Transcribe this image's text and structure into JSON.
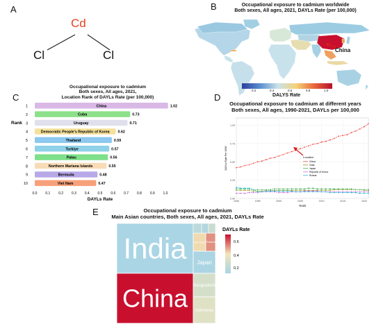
{
  "panels": {
    "a": "A",
    "b": "B",
    "c": "C",
    "d": "D",
    "e": "E"
  },
  "molecule": {
    "center": "Cd",
    "left": "Cl",
    "right": "Cl",
    "center_color": "#e8401c"
  },
  "map": {
    "title": [
      "Occupational exposure to cadmium worldwide",
      "Both sexes, All ages, 2021, DAYLs Rate (per 100,000)"
    ],
    "annotation": "China",
    "colorbar_label": "DALYS Rate",
    "colorbar_ticks": [
      "0.2",
      "0.4",
      "0.6",
      "0.8",
      "1.0"
    ]
  },
  "chart_data": [
    {
      "type": "bar",
      "title": [
        "Occupational exposure to cadmium",
        "Both sexes, All ages, 2021,",
        "Location Rank of DAYLs Rate (per 100,000)"
      ],
      "xlabel": "DAYLs Rate",
      "ylabel": "Rank",
      "xlim": [
        0,
        1.0
      ],
      "xticks": [
        "0.0",
        "0.1",
        "0.2",
        "0.3",
        "0.4",
        "0.5",
        "0.6",
        "0.7",
        "0.8",
        "0.9",
        "1.0"
      ],
      "ranks": [
        "1",
        "2",
        "3",
        "4",
        "5",
        "6",
        "7",
        "8",
        "9",
        "10"
      ],
      "categories": [
        "China",
        "Cuba",
        "Uruguay",
        "Democratic People's Republic of Korea",
        "Thailand",
        "Turkiye",
        "Palau",
        "Northern Mariana Islands",
        "Bermuda",
        "Viet Nam"
      ],
      "values": [
        1.02,
        0.73,
        0.71,
        0.62,
        0.59,
        0.57,
        0.56,
        0.55,
        0.48,
        0.47
      ],
      "value_labels": [
        "1.02",
        "0.73",
        "0.71",
        "0.62",
        "0.59",
        "0.57",
        "0.56",
        "0.55",
        "0.48",
        "0.47"
      ],
      "colors": [
        "#d9b8e6",
        "#8de08a",
        "#e0e0ec",
        "#f5e19a",
        "#8cc8ef",
        "#8fd1e8",
        "#7fe08a",
        "#f8dcb8",
        "#b7a8e8",
        "#f7a07a"
      ]
    },
    {
      "type": "line",
      "title": [
        "Occupational exposure to cadmium at different years",
        "Both sexes, All ages, 1990-2021, DAYLs per 100,000"
      ],
      "xlabel": "Years",
      "ylabel": "DAYLs Rate Per 1000",
      "xlim": [
        1990,
        2021
      ],
      "ylim": [
        0,
        1.1
      ],
      "xticks": [
        "1990",
        "1995",
        "2000",
        "2005",
        "2010",
        "2015",
        "2020"
      ],
      "yticks": [
        "0.00",
        "0.25",
        "0.50",
        "0.75",
        "1.00"
      ],
      "legend_title": "Location",
      "x": [
        1990,
        1991,
        1992,
        1993,
        1994,
        1995,
        1996,
        1997,
        1998,
        1999,
        2000,
        2001,
        2002,
        2003,
        2004,
        2005,
        2006,
        2007,
        2008,
        2009,
        2010,
        2011,
        2012,
        2013,
        2014,
        2015,
        2016,
        2017,
        2018,
        2019,
        2020,
        2021
      ],
      "series": [
        {
          "name": "China",
          "color": "#f0504a",
          "values": [
            0.42,
            0.43,
            0.45,
            0.46,
            0.48,
            0.5,
            0.51,
            0.53,
            0.55,
            0.56,
            0.58,
            0.6,
            0.62,
            0.64,
            0.66,
            0.68,
            0.7,
            0.72,
            0.74,
            0.75,
            0.77,
            0.78,
            0.8,
            0.82,
            0.85,
            0.86,
            0.87,
            0.9,
            0.92,
            0.95,
            0.98,
            1.02
          ]
        },
        {
          "name": "India",
          "color": "#9a9a1a",
          "values": [
            0.11,
            0.11,
            0.11,
            0.11,
            0.1,
            0.1,
            0.1,
            0.11,
            0.11,
            0.11,
            0.11,
            0.11,
            0.11,
            0.11,
            0.11,
            0.11,
            0.11,
            0.11,
            0.11,
            0.11,
            0.11,
            0.11,
            0.11,
            0.12,
            0.12,
            0.12,
            0.12,
            0.12,
            0.12,
            0.12,
            0.11,
            0.11
          ]
        },
        {
          "name": "Japan",
          "color": "#3fae5a",
          "values": [
            0.13,
            0.13,
            0.13,
            0.13,
            0.12,
            0.12,
            0.12,
            0.12,
            0.12,
            0.13,
            0.13,
            0.13,
            0.13,
            0.13,
            0.13,
            0.13,
            0.13,
            0.14,
            0.14,
            0.13,
            0.13,
            0.13,
            0.13,
            0.13,
            0.13,
            0.13,
            0.13,
            0.13,
            0.12,
            0.12,
            0.12,
            0.12
          ]
        },
        {
          "name": "Republic of Korea",
          "color": "#c66be0",
          "values": [
            0.07,
            0.07,
            0.07,
            0.08,
            0.08,
            0.08,
            0.09,
            0.09,
            0.09,
            0.09,
            0.08,
            0.08,
            0.08,
            0.09,
            0.09,
            0.09,
            0.1,
            0.1,
            0.1,
            0.1,
            0.09,
            0.09,
            0.09,
            0.09,
            0.09,
            0.09,
            0.09,
            0.09,
            0.09,
            0.09,
            0.09,
            0.09
          ]
        },
        {
          "name": "Russia",
          "color": "#29b8d6",
          "values": [
            0.15,
            0.14,
            0.14,
            0.14,
            0.12,
            0.09,
            0.09,
            0.1,
            0.1,
            0.1,
            0.1,
            0.1,
            0.1,
            0.1,
            0.09,
            0.09,
            0.09,
            0.09,
            0.09,
            0.09,
            0.09,
            0.09,
            0.08,
            0.08,
            0.08,
            0.08,
            0.08,
            0.08,
            0.08,
            0.07,
            0.07,
            0.07
          ]
        }
      ]
    },
    {
      "type": "heatmap",
      "subtype": "treemap",
      "title": [
        "Occupational exposure to cadmium",
        "Main Asian countries, Both sexes, All ages, 2021, DAYLs Rate"
      ],
      "legend_title": "DAYLs Rate",
      "legend_ticks": [
        "0.6",
        "0.4",
        "0.2"
      ],
      "colorscale": [
        "#a8d4e6",
        "#f2e6b8",
        "#c8102e"
      ],
      "tiles": [
        {
          "name": "India",
          "rate": 0.11,
          "label": "India"
        },
        {
          "name": "China",
          "rate": 1.02,
          "label": "China"
        },
        {
          "name": "Japan",
          "rate": 0.12,
          "label": "Japan"
        },
        {
          "name": "Bangladesh",
          "rate": 0.31,
          "label": "Bangladesh"
        },
        {
          "name": "Indonesia",
          "rate": 0.36,
          "label": "Indonesia"
        },
        {
          "name": "Viet Nam",
          "rate": 0.47,
          "label": "Viet Nam"
        },
        {
          "name": "Thailand",
          "rate": 0.59,
          "label": "Thailand"
        }
      ]
    }
  ]
}
